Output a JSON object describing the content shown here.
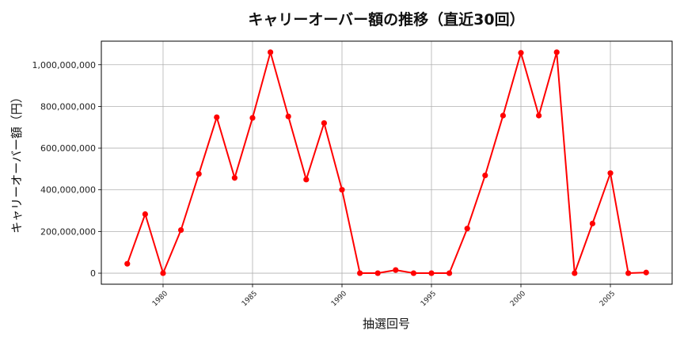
{
  "chart_data": {
    "type": "line",
    "title": "キャリーオーバー額の推移（直近30回）",
    "xlabel": "抽選回号",
    "ylabel": "キャリーオーバー額（円）",
    "x": [
      1978,
      1979,
      1980,
      1981,
      1982,
      1983,
      1984,
      1985,
      1986,
      1987,
      1988,
      1989,
      1990,
      1991,
      1992,
      1993,
      1994,
      1995,
      1996,
      1997,
      1998,
      1999,
      2000,
      2001,
      2002,
      2003,
      2004,
      2005,
      2006,
      2007
    ],
    "series": [
      {
        "values": [
          45000000,
          283000000,
          0,
          207000000,
          476000000,
          748000000,
          457000000,
          745000000,
          1060000000,
          752000000,
          449000000,
          720000000,
          400000000,
          0,
          0,
          15000000,
          0,
          0,
          0,
          214000000,
          469000000,
          756000000,
          1057000000,
          756000000,
          1060000000,
          0,
          238000000,
          480000000,
          0,
          3000000
        ],
        "color": "#ff0000"
      }
    ],
    "xticks": [
      "1980",
      "1985",
      "1990",
      "1995",
      "2000",
      "2005"
    ],
    "xtick_values": [
      1980,
      1985,
      1990,
      1995,
      2000,
      2005
    ],
    "yticks": [
      "0",
      "200,000,000",
      "400,000,000",
      "600,000,000",
      "800,000,000",
      "1,000,000,000"
    ],
    "ytick_values": [
      0,
      200000000,
      400000000,
      600000000,
      800000000,
      1000000000
    ],
    "xlim": [
      1976.55,
      2008.45
    ],
    "ylim": [
      -53000000,
      1113000000
    ],
    "grid": true,
    "legend": "none"
  }
}
